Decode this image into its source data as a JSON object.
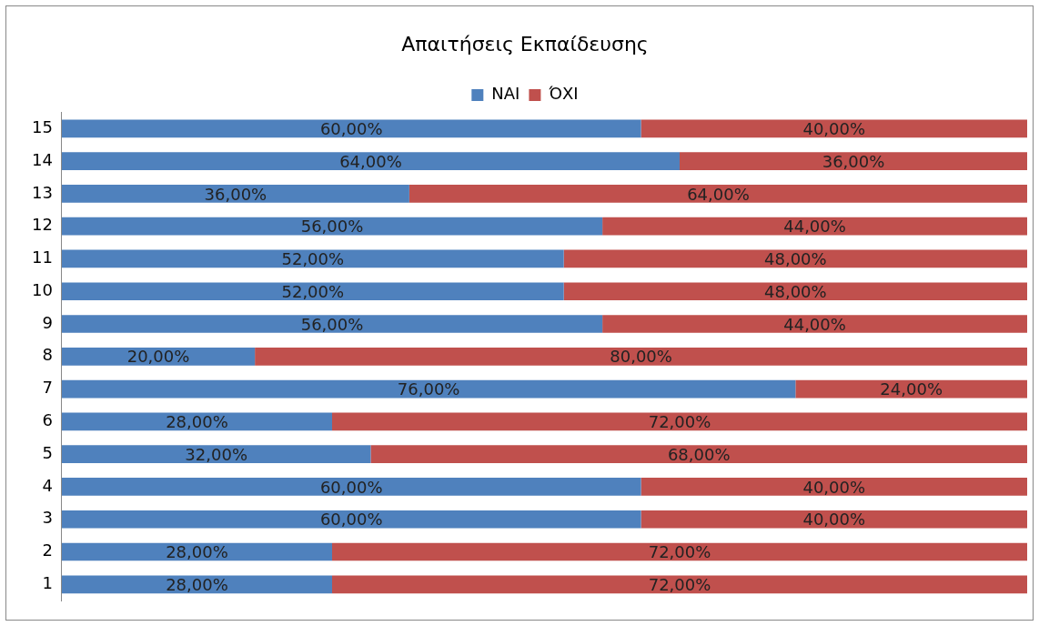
{
  "chart_data": {
    "type": "bar",
    "orientation": "horizontal",
    "stacked": true,
    "title": "Απαιτήσεις Εκπαίδευσης",
    "legend": "top",
    "categories": [
      "15",
      "14",
      "13",
      "12",
      "11",
      "10",
      "9",
      "8",
      "7",
      "6",
      "5",
      "4",
      "3",
      "2",
      "1"
    ],
    "series": [
      {
        "name": "ΝΑΙ",
        "color": "#4f81bd",
        "values": [
          60,
          64,
          36,
          56,
          52,
          52,
          56,
          20,
          76,
          28,
          32,
          60,
          60,
          28,
          28
        ],
        "value_labels": [
          "60,00%",
          "64,00%",
          "36,00%",
          "56,00%",
          "52,00%",
          "52,00%",
          "56,00%",
          "20,00%",
          "76,00%",
          "28,00%",
          "32,00%",
          "60,00%",
          "60,00%",
          "28,00%",
          "28,00%"
        ]
      },
      {
        "name": "ΌΧΙ",
        "color": "#c0504d",
        "values": [
          40,
          36,
          64,
          44,
          48,
          48,
          44,
          80,
          24,
          72,
          68,
          40,
          40,
          72,
          72
        ],
        "value_labels": [
          "40,00%",
          "36,00%",
          "64,00%",
          "44,00%",
          "48,00%",
          "48,00%",
          "44,00%",
          "80,00%",
          "24,00%",
          "72,00%",
          "68,00%",
          "40,00%",
          "40,00%",
          "72,00%",
          "72,00%"
        ]
      }
    ]
  }
}
